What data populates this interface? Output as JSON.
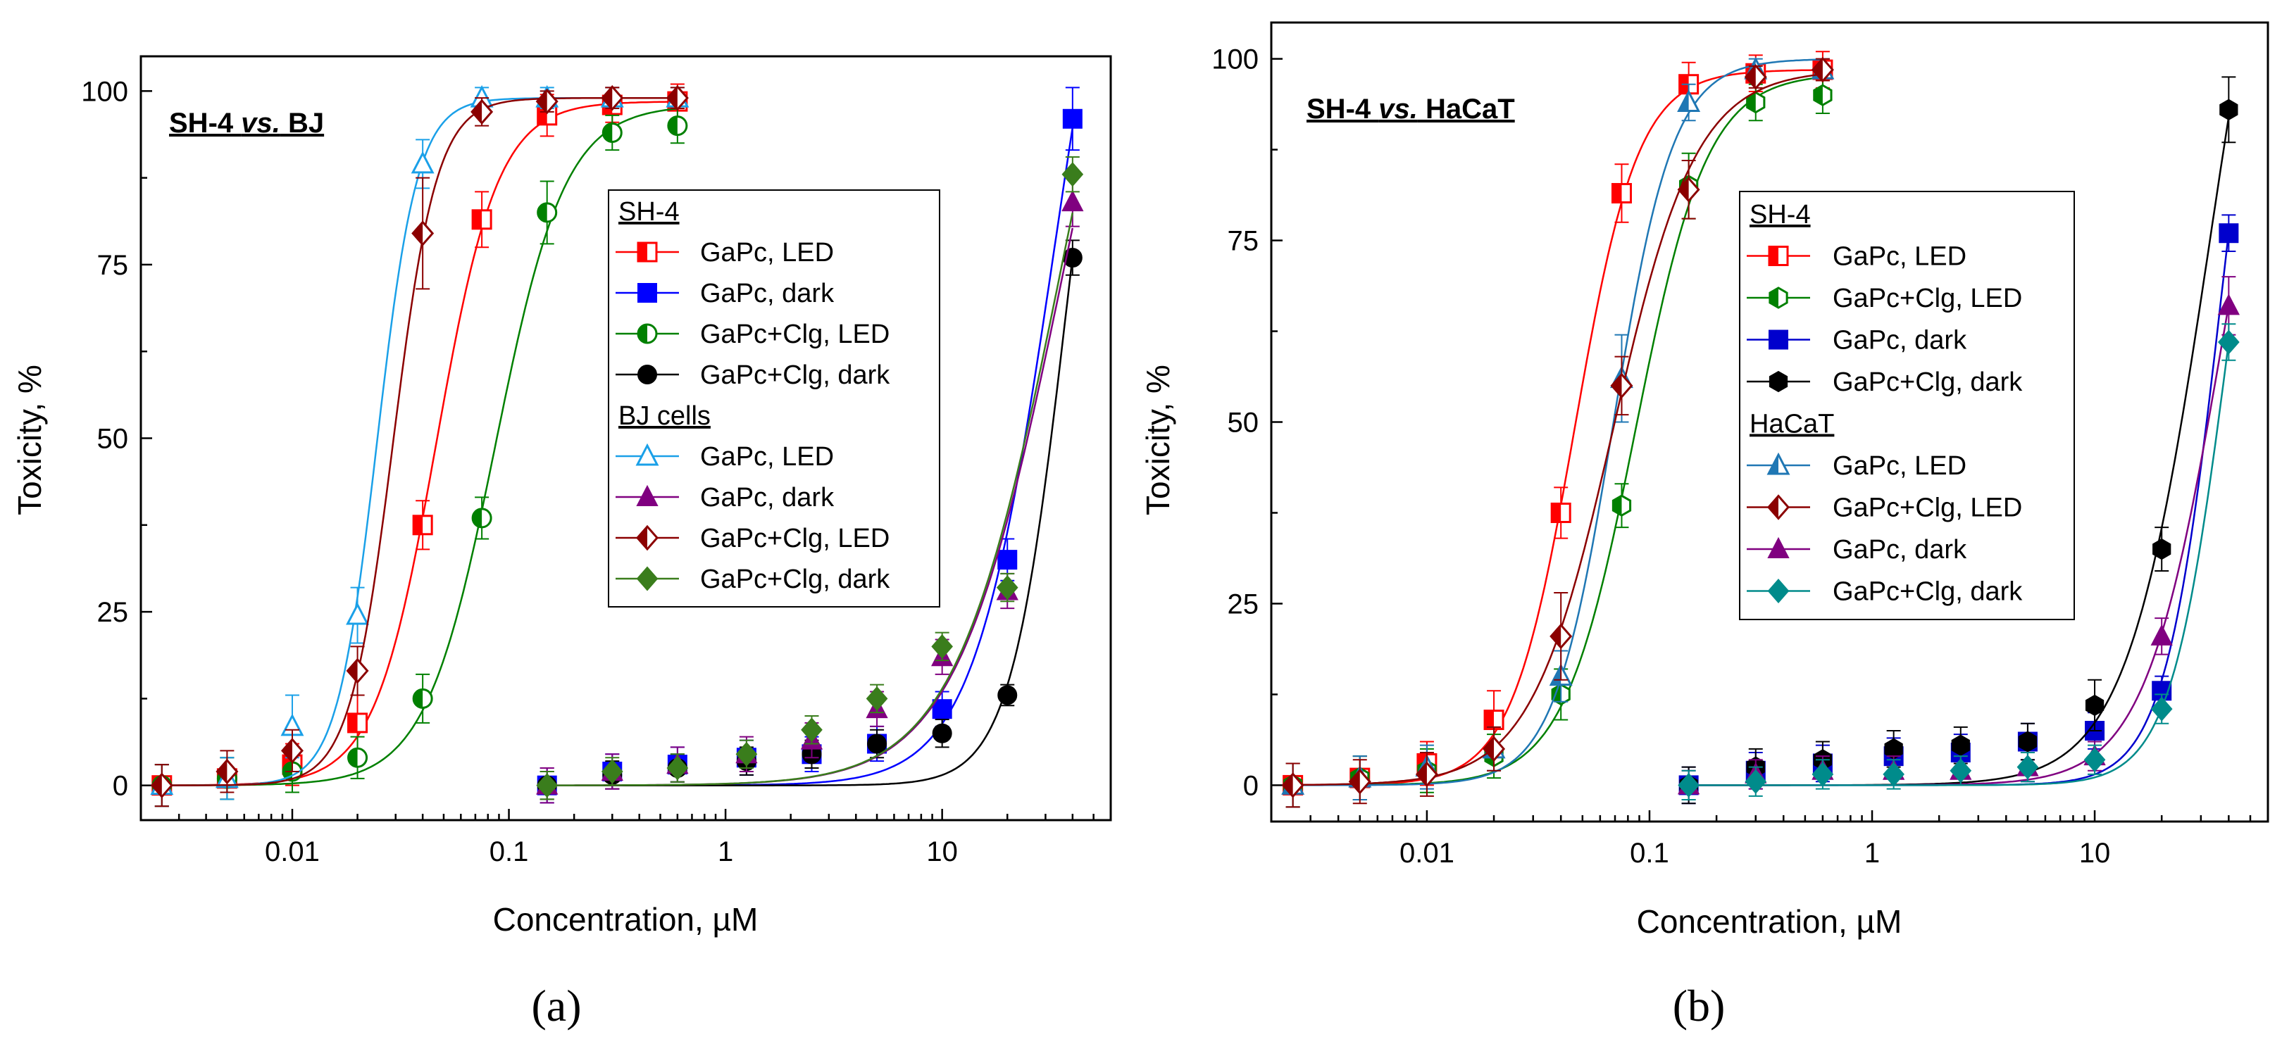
{
  "chart_data": [
    {
      "type": "scatter",
      "panel_label": "(a)",
      "title_parts": [
        "SH-4 ",
        "vs.",
        " BJ"
      ],
      "xlabel": "Concentration, µM",
      "ylabel": "Toxicity, %",
      "x_scale": "log",
      "xlim": [
        0.002,
        60
      ],
      "ylim": [
        -5,
        105
      ],
      "x_ticks": [
        0.01,
        0.1,
        1,
        10
      ],
      "x_tick_labels": [
        "0.01",
        "0.1",
        "1",
        "10"
      ],
      "y_ticks": [
        0,
        25,
        50,
        75,
        100
      ],
      "y_tick_labels": [
        "0",
        "25",
        "50",
        "75",
        "100"
      ],
      "legend_position": "center-right",
      "legend_groups": [
        {
          "title": "SH-4",
          "series": [
            0,
            1,
            2,
            3
          ]
        },
        {
          "title": "BJ cells",
          "series": [
            4,
            5,
            6,
            7
          ]
        }
      ],
      "series": [
        {
          "name": "GaPc, LED",
          "group": "SH-4",
          "color": "#ff0000",
          "marker": "square-half",
          "fit": "sigmoid",
          "x": [
            0.0025,
            0.005,
            0.01,
            0.02,
            0.04,
            0.075,
            0.15,
            0.3,
            0.6
          ],
          "y": [
            0,
            1,
            3,
            9,
            37.5,
            81.5,
            96.5,
            98,
            98.5
          ],
          "err": [
            3,
            3,
            3,
            4,
            3.5,
            4,
            3,
            2.5,
            2.5
          ]
        },
        {
          "name": "GaPc, dark",
          "group": "SH-4",
          "color": "#0000ff",
          "marker": "square",
          "fit": "sigmoid",
          "x": [
            0.15,
            0.3,
            0.6,
            1.25,
            2.5,
            5,
            10,
            20,
            40
          ],
          "y": [
            0,
            2,
            3,
            4,
            4.5,
            6,
            11,
            32.5,
            96
          ],
          "err": [
            2.5,
            2.5,
            2.5,
            2.5,
            2.5,
            2.5,
            2.5,
            3,
            4.5
          ]
        },
        {
          "name": "GaPc+Clg, LED",
          "group": "SH-4",
          "color": "#008000",
          "marker": "circle-half",
          "fit": "sigmoid",
          "x": [
            0.0025,
            0.005,
            0.01,
            0.02,
            0.04,
            0.075,
            0.15,
            0.3,
            0.6
          ],
          "y": [
            0,
            1,
            2,
            4,
            12.5,
            38.5,
            82.5,
            94,
            95
          ],
          "err": [
            3,
            3,
            3,
            3,
            3.5,
            3,
            4.5,
            2.5,
            2.5
          ]
        },
        {
          "name": "GaPc+Clg, dark",
          "group": "SH-4",
          "color": "#000000",
          "marker": "circle",
          "fit": "sigmoid",
          "x": [
            0.15,
            0.3,
            0.6,
            1.25,
            2.5,
            5,
            10,
            20,
            40
          ],
          "y": [
            0,
            1.5,
            2.5,
            3.5,
            4.5,
            6,
            7.5,
            13,
            76
          ],
          "err": [
            2,
            2,
            2,
            2,
            2,
            2,
            2,
            1.5,
            2.5
          ]
        },
        {
          "name": "GaPc, LED",
          "group": "BJ cells",
          "color": "#1aa0e8",
          "marker": "triangle-open",
          "fit": "sigmoid",
          "x": [
            0.0025,
            0.005,
            0.01,
            0.02,
            0.04,
            0.075,
            0.15,
            0.3,
            0.6
          ],
          "y": [
            0,
            1,
            8.5,
            24.5,
            89.5,
            99,
            99,
            99,
            99
          ],
          "err": [
            3,
            3,
            4.5,
            4,
            3.5,
            1.5,
            1.5,
            1.5,
            1.5
          ]
        },
        {
          "name": "GaPc, dark",
          "group": "BJ cells",
          "color": "#800080",
          "marker": "triangle",
          "fit": "sigmoid",
          "x": [
            0.15,
            0.3,
            0.6,
            1.25,
            2.5,
            5,
            10,
            20,
            40
          ],
          "y": [
            0,
            2,
            3,
            4.5,
            6.5,
            11,
            18.5,
            28,
            84
          ],
          "err": [
            2.5,
            2.5,
            2.5,
            2.5,
            2.5,
            2.5,
            2.5,
            2.5,
            3.5
          ]
        },
        {
          "name": "GaPc+Clg, LED",
          "group": "BJ cells",
          "color": "#8b0000",
          "marker": "diamond-half",
          "fit": "sigmoid",
          "x": [
            0.0025,
            0.005,
            0.01,
            0.02,
            0.04,
            0.075,
            0.15,
            0.3,
            0.6
          ],
          "y": [
            0,
            2,
            5,
            16.5,
            79.5,
            97,
            98.5,
            99,
            99
          ],
          "err": [
            3,
            3,
            3,
            3.5,
            8,
            2,
            1.5,
            1.5,
            1.5
          ]
        },
        {
          "name": "GaPc+Clg, dark",
          "group": "BJ cells",
          "color": "#3a7d1c",
          "marker": "diamond",
          "fit": "sigmoid",
          "x": [
            0.15,
            0.3,
            0.6,
            1.25,
            2.5,
            5,
            10,
            20,
            40
          ],
          "y": [
            0,
            2,
            2.5,
            4.5,
            8,
            12.5,
            20,
            28.5,
            88
          ],
          "err": [
            2,
            2,
            2,
            2,
            2,
            2,
            2,
            2,
            2.5
          ]
        }
      ]
    },
    {
      "type": "scatter",
      "panel_label": "(b)",
      "title_parts": [
        "SH-4 ",
        "vs.",
        " HaCaT"
      ],
      "xlabel": "Concentration, µM",
      "ylabel": "Toxicity, %",
      "x_scale": "log",
      "xlim": [
        0.002,
        60
      ],
      "ylim": [
        -5,
        105
      ],
      "x_ticks": [
        0.01,
        0.1,
        1,
        10
      ],
      "x_tick_labels": [
        "0.01",
        "0.1",
        "1",
        "10"
      ],
      "y_ticks": [
        0,
        25,
        50,
        75,
        100
      ],
      "y_tick_labels": [
        "0",
        "25",
        "50",
        "75",
        "100"
      ],
      "legend_position": "center-right",
      "legend_groups": [
        {
          "title": "SH-4",
          "series": [
            0,
            1,
            2,
            3
          ]
        },
        {
          "title": "HaCaT",
          "series": [
            4,
            5,
            6,
            7
          ]
        }
      ],
      "series": [
        {
          "name": "GaPc, LED",
          "group": "SH-4",
          "color": "#ff0000",
          "marker": "square-half",
          "fit": "sigmoid",
          "x": [
            0.0025,
            0.005,
            0.01,
            0.02,
            0.04,
            0.075,
            0.15,
            0.3,
            0.6
          ],
          "y": [
            0,
            1,
            3,
            9,
            37.5,
            81.5,
            96.5,
            98,
            98.5
          ],
          "err": [
            3,
            3,
            3,
            4,
            3.5,
            4,
            3,
            2.5,
            2.5
          ]
        },
        {
          "name": "GaPc+Clg, LED",
          "group": "SH-4",
          "color": "#008000",
          "marker": "hexagon-half",
          "fit": "sigmoid",
          "x": [
            0.0025,
            0.005,
            0.01,
            0.02,
            0.04,
            0.075,
            0.15,
            0.3,
            0.6
          ],
          "y": [
            0,
            1,
            2,
            4,
            12.5,
            38.5,
            82.5,
            94,
            95
          ],
          "err": [
            3,
            3,
            3,
            3,
            3.5,
            3,
            4.5,
            2.5,
            2.5
          ]
        },
        {
          "name": "GaPc, dark",
          "group": "SH-4",
          "color": "#0000cd",
          "marker": "square",
          "fit": "sigmoid",
          "x": [
            0.15,
            0.3,
            0.6,
            1.25,
            2.5,
            5,
            10,
            20,
            40
          ],
          "y": [
            0,
            2,
            3,
            4,
            4.5,
            6,
            7.5,
            13,
            76
          ],
          "err": [
            2.5,
            2.5,
            2.5,
            2.5,
            2.5,
            2.5,
            2.5,
            2,
            2.5
          ]
        },
        {
          "name": "GaPc+Clg, dark",
          "group": "SH-4",
          "color": "#000000",
          "marker": "hexagon",
          "fit": "sigmoid",
          "x": [
            0.15,
            0.3,
            0.6,
            1.25,
            2.5,
            5,
            10,
            20,
            40
          ],
          "y": [
            0,
            2.5,
            3.5,
            5,
            5.5,
            6,
            11,
            32.5,
            93
          ],
          "err": [
            2.5,
            2.5,
            2.5,
            2.5,
            2.5,
            2.5,
            3.5,
            3,
            4.5
          ]
        },
        {
          "name": "GaPc, LED",
          "group": "HaCaT",
          "color": "#1f77b4",
          "marker": "triangle-half",
          "fit": "sigmoid",
          "x": [
            0.0025,
            0.005,
            0.01,
            0.02,
            0.04,
            0.075,
            0.15,
            0.3,
            0.6
          ],
          "y": [
            0,
            1,
            2.5,
            5,
            15,
            56,
            94,
            98.5,
            98.5
          ],
          "err": [
            3,
            3,
            3,
            3,
            3.5,
            6,
            2.5,
            1.5,
            1.5
          ]
        },
        {
          "name": "GaPc+Clg, LED",
          "group": "HaCaT",
          "color": "#8b0000",
          "marker": "diamond-half",
          "fit": "sigmoid",
          "x": [
            0.0025,
            0.005,
            0.01,
            0.02,
            0.04,
            0.075,
            0.15,
            0.3,
            0.6
          ],
          "y": [
            0,
            0.5,
            1.5,
            5,
            20.5,
            55,
            82,
            97.5,
            98.5
          ],
          "err": [
            3,
            3,
            3,
            3,
            6,
            4,
            4,
            1.5,
            1.5
          ]
        },
        {
          "name": "GaPc, dark",
          "group": "HaCaT",
          "color": "#800080",
          "marker": "triangle",
          "fit": "sigmoid",
          "x": [
            0.15,
            0.3,
            0.6,
            1.25,
            2.5,
            5,
            10,
            20,
            40
          ],
          "y": [
            0,
            1.5,
            2,
            2,
            2,
            2.5,
            4,
            20.5,
            66
          ],
          "err": [
            2,
            2,
            2,
            2,
            2,
            2,
            2,
            2.5,
            4
          ]
        },
        {
          "name": "GaPc+Clg, dark",
          "group": "HaCaT",
          "color": "#008b8b",
          "marker": "diamond",
          "fit": "sigmoid",
          "x": [
            0.15,
            0.3,
            0.6,
            1.25,
            2.5,
            5,
            10,
            20,
            40
          ],
          "y": [
            0,
            0.5,
            1.5,
            1.5,
            2,
            2.5,
            3.5,
            10.5,
            61
          ],
          "err": [
            2,
            2,
            2,
            2,
            2,
            2,
            2,
            2,
            2.5
          ]
        }
      ]
    }
  ]
}
